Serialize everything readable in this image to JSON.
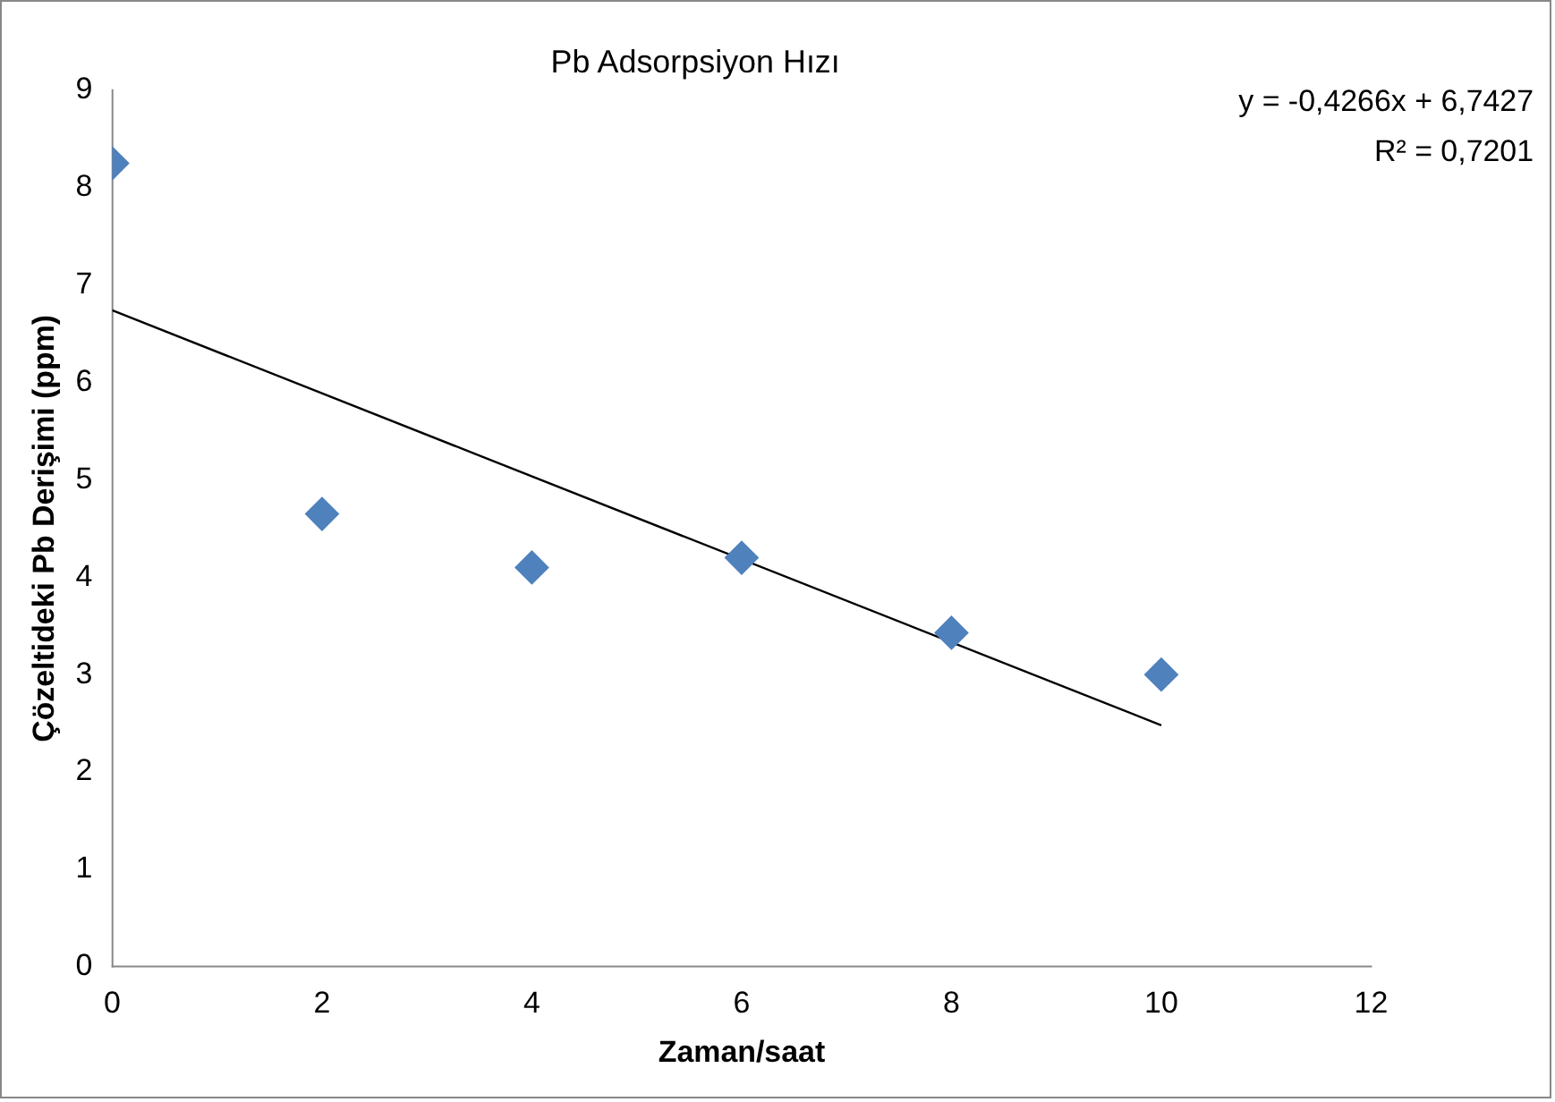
{
  "chart_data": {
    "type": "scatter",
    "title": "Pb Adsorpsiyon Hızı",
    "xlabel": "Zaman/saat",
    "ylabel": "Çözeltideki Pb Derişimi (ppm)",
    "xlim": [
      0,
      12
    ],
    "xticks": [
      0,
      2,
      4,
      6,
      8,
      10,
      12
    ],
    "ylim": [
      0,
      9
    ],
    "yticks": [
      0,
      1,
      2,
      3,
      4,
      5,
      6,
      7,
      8,
      9
    ],
    "series": [
      {
        "color": "#4f81bd",
        "marker": "diamond",
        "x": [
          0,
          2,
          4,
          6,
          8,
          10
        ],
        "values": [
          8.25,
          4.65,
          4.1,
          4.2,
          3.43,
          3.0
        ]
      },
      {
        "type": "line",
        "color": "#000000",
        "marker": "none",
        "x": [
          0,
          10
        ],
        "values": [
          6.74,
          2.48
        ]
      }
    ],
    "annotations": [
      "y = -0,4266x + 6,7427",
      "R² = 0,7201"
    ]
  }
}
